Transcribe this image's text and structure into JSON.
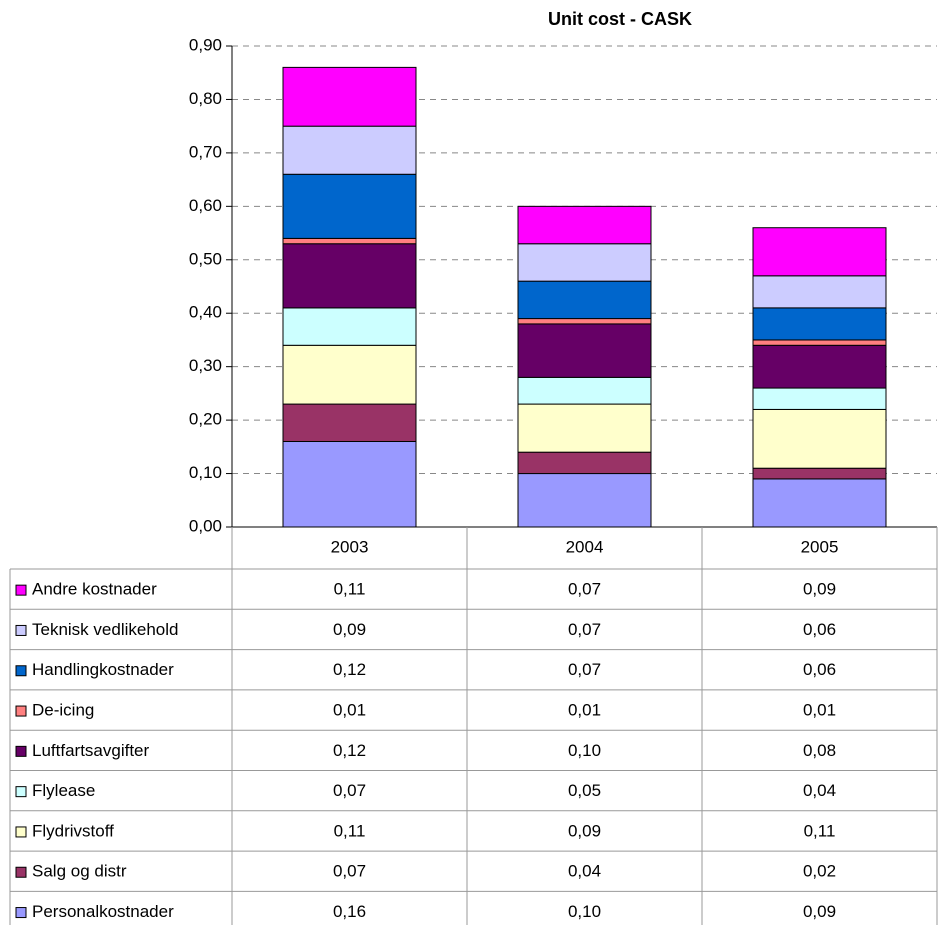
{
  "chart_data": {
    "type": "stacked_bar",
    "title": "Unit cost - CASK",
    "categories": [
      "2003",
      "2004",
      "2005"
    ],
    "ylim": [
      0,
      0.9
    ],
    "yticks": [
      {
        "value": 0,
        "label": "0,00"
      },
      {
        "value": 0.1,
        "label": "0,10"
      },
      {
        "value": 0.2,
        "label": "0,20"
      },
      {
        "value": 0.3,
        "label": "0,30"
      },
      {
        "value": 0.4,
        "label": "0,40"
      },
      {
        "value": 0.5,
        "label": "0,50"
      },
      {
        "value": 0.6,
        "label": "0,60"
      },
      {
        "value": 0.7,
        "label": "0,70"
      },
      {
        "value": 0.8,
        "label": "0,80"
      },
      {
        "value": 0.9,
        "label": "0,90"
      }
    ],
    "grid": true,
    "series": [
      {
        "name": "Personalkostnader",
        "color": "#9999ff",
        "values": [
          0.16,
          0.1,
          0.09
        ],
        "value_labels": [
          "0,16",
          "0,10",
          "0,09"
        ]
      },
      {
        "name": "Salg og distr",
        "color": "#993366",
        "values": [
          0.07,
          0.04,
          0.02
        ],
        "value_labels": [
          "0,07",
          "0,04",
          "0,02"
        ]
      },
      {
        "name": "Flydrivstoff",
        "color": "#ffffcc",
        "values": [
          0.11,
          0.09,
          0.11
        ],
        "value_labels": [
          "0,11",
          "0,09",
          "0,11"
        ]
      },
      {
        "name": "Flylease",
        "color": "#ccffff",
        "values": [
          0.07,
          0.05,
          0.04
        ],
        "value_labels": [
          "0,07",
          "0,05",
          "0,04"
        ]
      },
      {
        "name": "Luftfartsavgifter",
        "color": "#660066",
        "values": [
          0.12,
          0.1,
          0.08
        ],
        "value_labels": [
          "0,12",
          "0,10",
          "0,08"
        ]
      },
      {
        "name": "De-icing",
        "color": "#ff8080",
        "values": [
          0.01,
          0.01,
          0.01
        ],
        "value_labels": [
          "0,01",
          "0,01",
          "0,01"
        ]
      },
      {
        "name": "Handlingkostnader",
        "color": "#0066cc",
        "values": [
          0.12,
          0.07,
          0.06
        ],
        "value_labels": [
          "0,12",
          "0,07",
          "0,06"
        ]
      },
      {
        "name": "Teknisk vedlikehold",
        "color": "#ccccff",
        "values": [
          0.09,
          0.07,
          0.06
        ],
        "value_labels": [
          "0,09",
          "0,07",
          "0,06"
        ]
      },
      {
        "name": "Andre kostnader",
        "color": "#ff00ff",
        "values": [
          0.11,
          0.07,
          0.09
        ],
        "value_labels": [
          "0,11",
          "0,07",
          "0,09"
        ]
      }
    ]
  }
}
